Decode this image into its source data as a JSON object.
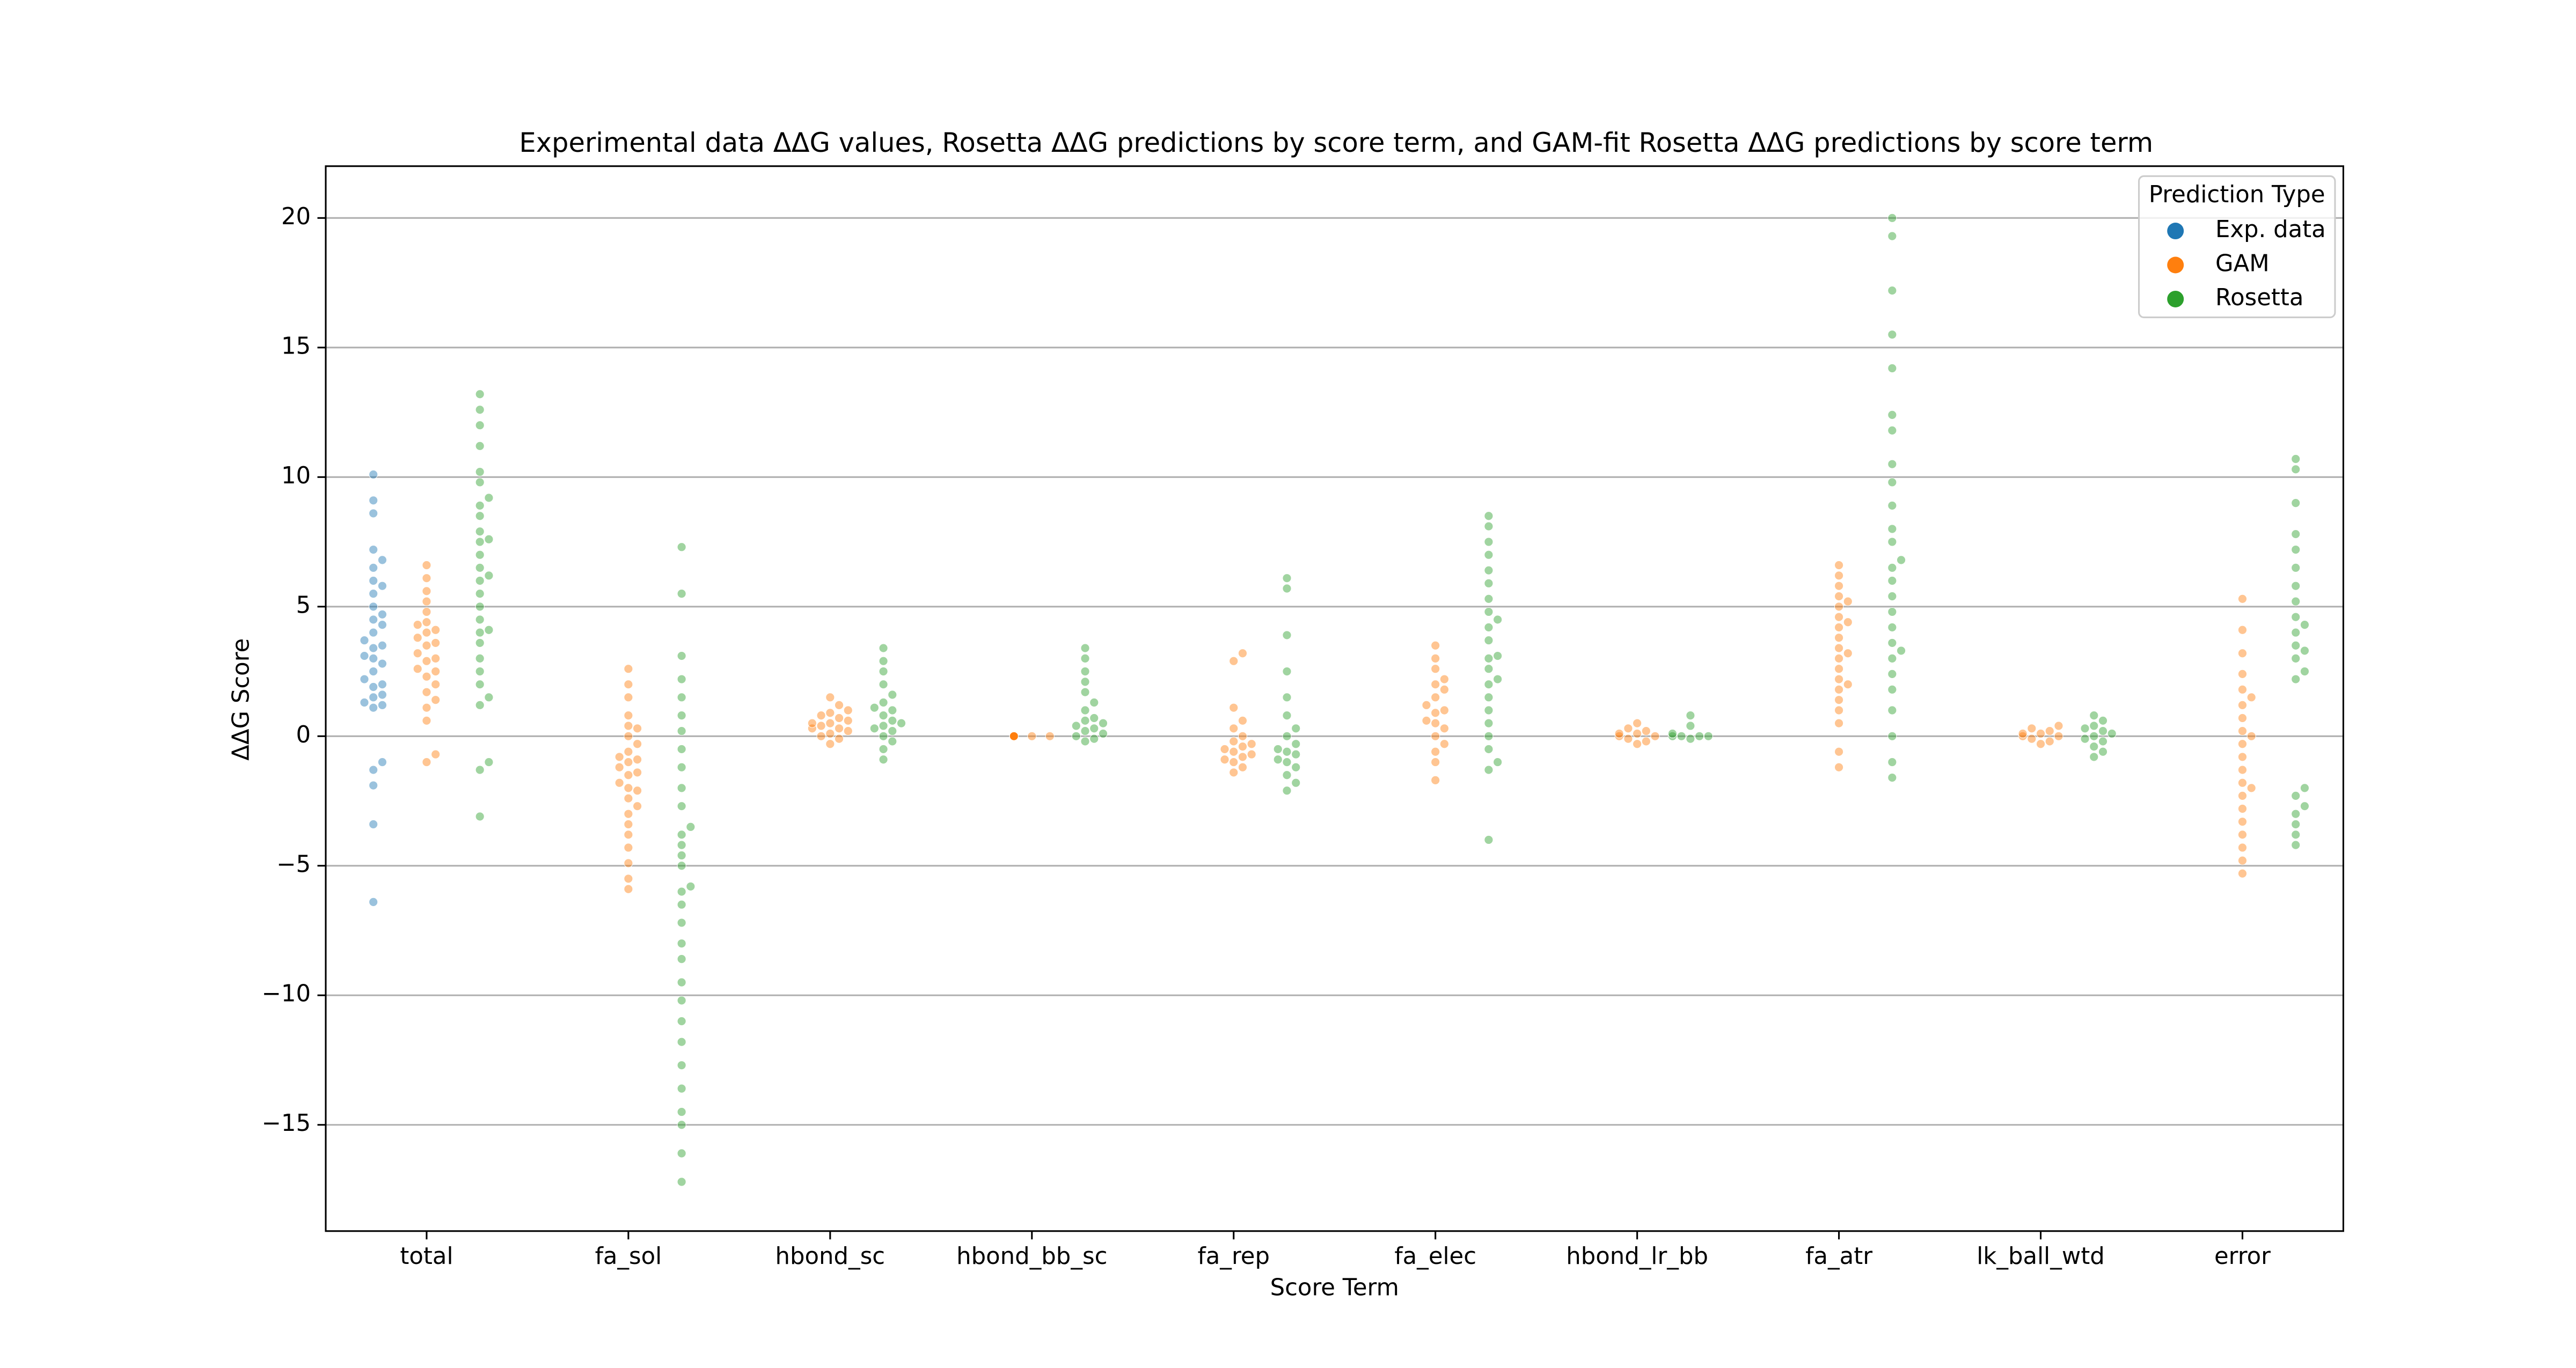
{
  "chart_data": {
    "type": "swarm",
    "title": "Experimental data ΔΔG values, Rosetta ΔΔG predictions by score term, and GAM-fit Rosetta ΔΔG predictions by score term",
    "x_label": "Score Term",
    "y_label": "ΔΔG Score",
    "legend_title": "Prediction Type",
    "legend": "upper right",
    "grid": true,
    "categories": [
      "total",
      "fa_sol",
      "hbond_sc",
      "hbond_bb_sc",
      "fa_rep",
      "fa_elec",
      "hbond_lr_bb",
      "fa_atr",
      "lk_ball_wtd",
      "error"
    ],
    "ylim": [
      -19.1,
      22
    ],
    "yticks": [
      {
        "value": -15,
        "label": "−15"
      },
      {
        "value": -10,
        "label": "−10"
      },
      {
        "value": -5,
        "label": "−5"
      },
      0,
      5,
      10,
      15,
      20
    ],
    "series": [
      {
        "name": "Exp. data",
        "color": "#1f77b4",
        "values": [
          [
            10.1,
            9.1,
            8.6,
            7.2,
            6.8,
            6.5,
            6.0,
            5.5,
            5.0,
            4.7,
            4.3,
            4.0,
            3.7,
            3.4,
            3.1,
            2.8,
            2.5,
            2.2,
            1.9,
            1.6,
            1.3,
            1.2,
            1.1,
            -1.0,
            -1.3,
            -1.9,
            -3.4,
            -6.4,
            3.0,
            2.0,
            4.5,
            3.5,
            1.5,
            5.8
          ],
          [],
          [],
          [],
          [],
          [],
          [],
          [],
          [],
          []
        ]
      },
      {
        "name": "GAM",
        "color": "#ff7f0e",
        "values": [
          [
            6.6,
            6.1,
            5.6,
            5.2,
            4.8,
            4.4,
            4.1,
            3.8,
            3.5,
            3.2,
            2.9,
            2.6,
            2.3,
            2.0,
            1.7,
            1.4,
            1.1,
            0.6,
            -0.7,
            -1.0,
            4.0,
            3.0,
            2.5,
            3.6,
            4.3
          ],
          [
            2.6,
            2.0,
            1.5,
            0.8,
            0.4,
            0.0,
            -0.3,
            -0.6,
            -0.9,
            -1.2,
            -1.5,
            -1.8,
            -2.1,
            -2.4,
            -2.7,
            -3.0,
            -3.4,
            -3.8,
            -4.3,
            -4.9,
            -5.5,
            -5.9,
            -1.0,
            -0.8,
            -1.4,
            -2.0,
            0.3
          ],
          [
            1.5,
            1.2,
            1.0,
            0.8,
            0.7,
            0.5,
            0.4,
            0.3,
            0.2,
            0.1,
            0.0,
            -0.1,
            -0.3,
            0.6,
            0.9,
            0.3,
            0.5
          ],
          [
            0.0,
            0.0,
            0.0,
            0.0,
            0.0,
            0.0,
            0.0,
            0.0,
            0.0,
            0.0,
            0.0,
            0.0
          ],
          [
            3.2,
            2.9,
            1.1,
            0.6,
            0.3,
            0.0,
            -0.2,
            -0.4,
            -0.6,
            -0.8,
            -1.0,
            -1.2,
            -1.4,
            -0.5,
            -0.7,
            -0.3,
            -0.9
          ],
          [
            3.5,
            3.0,
            2.6,
            2.2,
            1.8,
            1.5,
            1.2,
            0.9,
            0.6,
            0.3,
            0.0,
            -0.3,
            -0.6,
            -1.0,
            -1.7,
            2.0,
            1.0,
            0.5
          ],
          [
            0.5,
            0.3,
            0.2,
            0.1,
            0.0,
            -0.1,
            -0.2,
            -0.3,
            0.0,
            0.1
          ],
          [
            6.6,
            6.2,
            5.8,
            5.4,
            5.0,
            4.6,
            4.2,
            3.8,
            3.4,
            3.0,
            2.6,
            2.2,
            1.8,
            1.4,
            1.0,
            0.5,
            -0.6,
            -1.2,
            4.4,
            3.2,
            2.0,
            5.2
          ],
          [
            0.4,
            0.3,
            0.2,
            0.1,
            0.0,
            -0.1,
            -0.2,
            -0.3,
            0.1,
            0.0
          ],
          [
            5.3,
            4.1,
            3.2,
            2.4,
            1.8,
            1.2,
            0.7,
            0.2,
            -0.3,
            -0.8,
            -1.3,
            -1.8,
            -2.3,
            -2.8,
            -3.3,
            -3.8,
            -4.3,
            -4.8,
            -5.3,
            1.5,
            0.0,
            -2.0
          ]
        ]
      },
      {
        "name": "Rosetta",
        "color": "#2ca02c",
        "values": [
          [
            13.2,
            12.6,
            12.0,
            11.2,
            10.2,
            9.8,
            9.2,
            8.5,
            7.9,
            7.5,
            7.0,
            6.5,
            6.0,
            5.5,
            5.0,
            4.5,
            4.0,
            3.6,
            3.0,
            2.5,
            2.0,
            1.5,
            1.2,
            -1.0,
            -1.3,
            -3.1,
            7.6,
            4.1,
            8.9,
            6.2
          ],
          [
            7.3,
            5.5,
            3.1,
            2.2,
            1.5,
            0.8,
            0.2,
            -0.5,
            -1.2,
            -2.0,
            -2.7,
            -3.5,
            -4.2,
            -5.0,
            -5.8,
            -6.5,
            -7.2,
            -8.0,
            -8.6,
            -9.5,
            -10.2,
            -11.0,
            -11.8,
            -12.7,
            -13.6,
            -14.5,
            -15.0,
            -16.1,
            -17.2,
            -3.8,
            -4.6,
            -6.0
          ],
          [
            3.4,
            2.9,
            2.5,
            2.0,
            1.6,
            1.3,
            1.0,
            0.8,
            0.6,
            0.4,
            0.2,
            0.0,
            -0.2,
            -0.5,
            -0.9,
            1.1,
            0.5,
            0.3
          ],
          [
            3.4,
            3.0,
            2.5,
            2.1,
            1.7,
            1.3,
            1.0,
            0.7,
            0.5,
            0.3,
            0.1,
            0.0,
            -0.1,
            -0.2,
            0.2,
            0.4,
            0.6
          ],
          [
            6.1,
            5.7,
            3.9,
            2.5,
            1.5,
            0.8,
            0.3,
            0.0,
            -0.3,
            -0.6,
            -0.9,
            -1.2,
            -1.5,
            -1.8,
            -2.1,
            -0.5,
            -1.0,
            -0.7
          ],
          [
            8.5,
            8.1,
            7.5,
            7.0,
            6.4,
            5.9,
            5.3,
            4.8,
            4.2,
            3.7,
            3.1,
            2.6,
            2.0,
            1.5,
            1.0,
            0.5,
            0.0,
            -0.5,
            -1.0,
            -1.3,
            -4.0,
            4.5,
            3.0,
            2.2
          ],
          [
            0.8,
            0.4,
            0.1,
            0.0,
            -0.1,
            0.0,
            0.0,
            0.0
          ],
          [
            20.0,
            19.3,
            17.2,
            15.5,
            14.2,
            12.4,
            11.8,
            10.5,
            9.8,
            8.9,
            8.0,
            7.5,
            6.8,
            6.0,
            5.4,
            4.8,
            4.2,
            3.6,
            3.0,
            2.4,
            1.8,
            1.0,
            0.0,
            -1.0,
            -1.6,
            6.5,
            3.3
          ],
          [
            0.8,
            0.6,
            0.4,
            0.2,
            0.0,
            -0.2,
            -0.4,
            -0.6,
            -0.8,
            0.1,
            -0.1,
            0.3
          ],
          [
            10.7,
            10.3,
            9.0,
            7.8,
            7.2,
            6.5,
            5.8,
            5.2,
            4.6,
            4.0,
            3.5,
            3.0,
            2.5,
            2.2,
            -2.0,
            -2.3,
            -2.7,
            -3.0,
            -3.4,
            -3.8,
            -4.2,
            3.3,
            4.3
          ]
        ]
      }
    ]
  }
}
